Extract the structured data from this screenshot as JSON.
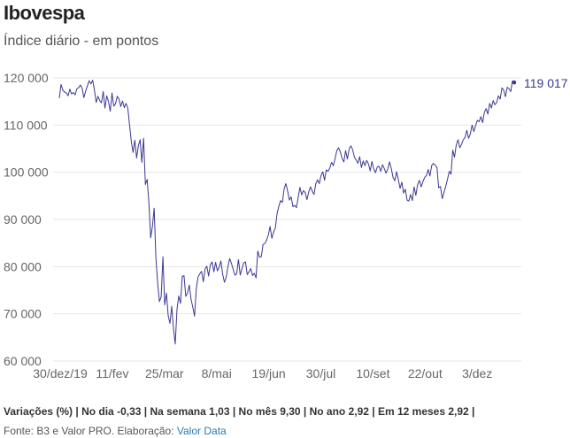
{
  "header": {
    "title": "Ibovespa",
    "subtitle": "Índice diário - em pontos"
  },
  "footer": {
    "variations": "Variações (%) | No dia -0,33 | Na semana 1,03 | No mês 9,30 | No ano 2,92 | Em 12 meses 2,92 |",
    "source_prefix": "Fonte: B3 e Valor PRO. Elaboração: ",
    "source_link": "Valor Data"
  },
  "colors": {
    "line": "#3b3791",
    "grid": "#e4e4e4",
    "axis_text": "#666666"
  },
  "chart_data": {
    "type": "line",
    "title": "Ibovespa",
    "subtitle": "Índice diário - em pontos",
    "xlabel": "",
    "ylabel": "",
    "ylim": [
      60000,
      120000
    ],
    "y_ticks": [
      60000,
      70000,
      80000,
      90000,
      100000,
      110000,
      120000
    ],
    "y_tick_labels": [
      "60 000",
      "70 000",
      "80 000",
      "90 000",
      "100 000",
      "110 000",
      "120 000"
    ],
    "x_tick_labels": [
      "30/dez/19",
      "11/fev",
      "25/mar",
      "8/mai",
      "19/jun",
      "30/jul",
      "10/set",
      "22/out",
      "3/dez"
    ],
    "grid": true,
    "last_value_label": "119 017",
    "series": [
      {
        "values": [
          115700,
          118600,
          117400,
          117000,
          116800,
          116200,
          117600,
          116600,
          116900,
          116400,
          117700,
          117900,
          118500,
          117800,
          115800,
          117200,
          118300,
          119400,
          118700,
          119500,
          117400,
          114800,
          116100,
          115200,
          114700,
          117100,
          113600,
          116200,
          115000,
          112900,
          116800,
          114000,
          114500,
          116100,
          115500,
          113900,
          115100,
          113700,
          114600,
          113600,
          110000,
          106500,
          104200,
          106800,
          103000,
          105600,
          106900,
          102100,
          107200,
          97400,
          98500,
          93600,
          86100,
          88500,
          92400,
          81800,
          76400,
          72600,
          73600,
          82100,
          71900,
          74400,
          69600,
          68000,
          71600,
          66900,
          63600,
          70900,
          73800,
          72200,
          77900,
          78100,
          73700,
          74400,
          76100,
          73100,
          71400,
          69500,
          75400,
          77800,
          78500,
          79000,
          76800,
          79500,
          80100,
          78000,
          80400,
          81000,
          78900,
          80900,
          79100,
          79900,
          81200,
          78400,
          76700,
          77700,
          80000,
          81700,
          80700,
          79400,
          78200,
          78500,
          81500,
          78200,
          79600,
          80800,
          81000,
          78300,
          78900,
          79600,
          78100,
          78600,
          77600,
          83300,
          82000,
          82100,
          84700,
          84900,
          85600,
          86700,
          88500,
          86000,
          87300,
          88200,
          91300,
          92800,
          94000,
          93600,
          96500,
          97600,
          96000,
          94100,
          94800,
          92700,
          93000,
          92500,
          94700,
          96800,
          95200,
          96100,
          95700,
          94200,
          95800,
          96900,
          96000,
          95300,
          97500,
          98400,
          97600,
          99300,
          100100,
          98300,
          100500,
          100200,
          100900,
          102100,
          101400,
          102900,
          104600,
          105200,
          104300,
          102900,
          102200,
          104600,
          102800,
          104900,
          105600,
          104800,
          103200,
          102600,
          101900,
          103300,
          101000,
          102400,
          101400,
          102500,
          101800,
          100300,
          102300,
          100700,
          99900,
          101100,
          101300,
          100200,
          101600,
          100800,
          99800,
          100700,
          102200,
          100800,
          98900,
          98200,
          100100,
          98500,
          96600,
          97900,
          95600,
          96400,
          94100,
          93900,
          95300,
          94000,
          96900,
          95100,
          97400,
          98300,
          96900,
          98000,
          98900,
          99300,
          100600,
          99200,
          101400,
          101900,
          101500,
          101000,
          96700,
          97000,
          94400,
          95700,
          97000,
          98500,
          100200,
          99600,
          104700,
          103200,
          105800,
          106900,
          105200,
          105900,
          106900,
          107400,
          108900,
          107200,
          108100,
          110000,
          108600,
          109900,
          111000,
          110700,
          111800,
          110500,
          112700,
          113500,
          112300,
          114600,
          113600,
          115200,
          114300,
          114800,
          116200,
          115500,
          117900,
          117400,
          116000,
          118000,
          117700,
          117100,
          119400,
          119017
        ]
      }
    ]
  }
}
